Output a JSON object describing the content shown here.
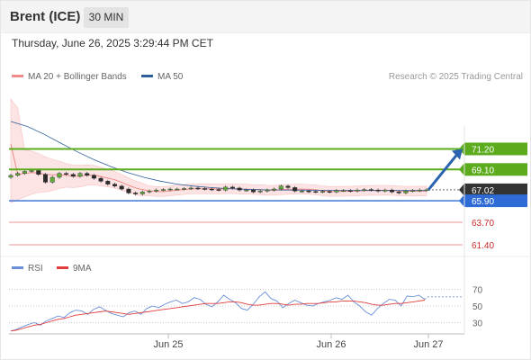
{
  "header": {
    "instrument": "Brent (ICE)",
    "timeframe": "30 MIN",
    "datetime": "Thursday, June 26, 2025 3:29:44 PM CET"
  },
  "legend_top": {
    "items": [
      {
        "label": "MA 20 + Bollinger Bands",
        "color": "#f08a8a"
      },
      {
        "label": "MA 50",
        "color": "#2e5e9a"
      }
    ],
    "credit": "Research © 2025 Trading Central"
  },
  "legend_bottom": {
    "items": [
      {
        "label": "RSI",
        "color": "#6a8fd8"
      },
      {
        "label": "9MA",
        "color": "#e23c3c"
      }
    ]
  },
  "colors": {
    "resistance": "#5cab1c",
    "current": "#333333",
    "pivot": "#2f6bd6",
    "support": "#cc2a2a",
    "arrow": "#2c63b0"
  },
  "chart_data": [
    {
      "type": "line",
      "name": "price",
      "x_ticks": [
        "Jun 25",
        "Jun 26",
        "Jun 27"
      ],
      "levels": [
        {
          "value": 71.2,
          "label": "71.20",
          "kind": "resistance"
        },
        {
          "value": 69.1,
          "label": "69.10",
          "kind": "resistance"
        },
        {
          "value": 67.02,
          "label": "67.02",
          "kind": "current"
        },
        {
          "value": 65.9,
          "label": "65.90",
          "kind": "pivot"
        },
        {
          "value": 63.7,
          "label": "63.70",
          "kind": "support"
        },
        {
          "value": 61.4,
          "label": "61.40",
          "kind": "support"
        }
      ],
      "price_close": [
        68.5,
        68.7,
        68.9,
        69.0,
        68.6,
        67.8,
        68.3,
        68.7,
        68.6,
        68.4,
        68.7,
        68.5,
        68.2,
        67.9,
        67.6,
        67.4,
        67.1,
        66.7,
        66.6,
        66.8,
        66.9,
        67.0,
        67.05,
        67.1,
        67.1,
        67.15,
        67.2,
        67.15,
        67.1,
        67.05,
        67.0,
        67.3,
        67.2,
        67.0,
        67.0,
        66.8,
        66.9,
        67.0,
        67.1,
        67.4,
        67.25,
        66.9,
        66.9,
        66.85,
        66.8,
        66.85,
        66.8,
        66.95,
        66.95,
        66.9,
        67.0,
        67.05,
        67.0,
        66.9,
        67.0,
        66.8,
        66.7,
        66.9,
        66.95,
        67.0,
        67.02
      ],
      "ma50": [
        74.0,
        73.5,
        72.7,
        71.8,
        70.9,
        70.1,
        69.4,
        68.8,
        68.3,
        67.9,
        67.6,
        67.4,
        67.25,
        67.15,
        67.08,
        67.03,
        67.0,
        66.99,
        66.98,
        66.97,
        66.96,
        66.95,
        66.95,
        66.95,
        66.95,
        66.95
      ],
      "ylim": [
        60.0,
        74.5
      ]
    },
    {
      "type": "line",
      "name": "RSI",
      "y_ticks": [
        70,
        50,
        30
      ],
      "ylim": [
        10,
        90
      ],
      "rsi": [
        20,
        22,
        25,
        28,
        30,
        27,
        32,
        35,
        38,
        36,
        42,
        45,
        44,
        40,
        46,
        49,
        45,
        41,
        39,
        37,
        42,
        44,
        40,
        47,
        50,
        48,
        52,
        55,
        57,
        53,
        55,
        60,
        58,
        52,
        49,
        55,
        63,
        58,
        54,
        47,
        45,
        52,
        61,
        67,
        59,
        56,
        48,
        53,
        57,
        54,
        51,
        50,
        53,
        55,
        57,
        60,
        58,
        63,
        55,
        50,
        43,
        39,
        47,
        53,
        58,
        57,
        50,
        62,
        61,
        63,
        58
      ],
      "rsi_ma": [
        20,
        21,
        23,
        25,
        27,
        28,
        30,
        32,
        34,
        35,
        37,
        39,
        40,
        41,
        42,
        43,
        44,
        43,
        42,
        41,
        40,
        41,
        42,
        43,
        44,
        45,
        46,
        47,
        48,
        49,
        50,
        51,
        52,
        53,
        53,
        53,
        54,
        55,
        55,
        54,
        52,
        51,
        51,
        52,
        53,
        53,
        52,
        51,
        52,
        52,
        53,
        53,
        53,
        54,
        55,
        55,
        56,
        56,
        56,
        55,
        54,
        52,
        51,
        51,
        52,
        53,
        53,
        54,
        55,
        56,
        57
      ],
      "projection": 61
    }
  ]
}
